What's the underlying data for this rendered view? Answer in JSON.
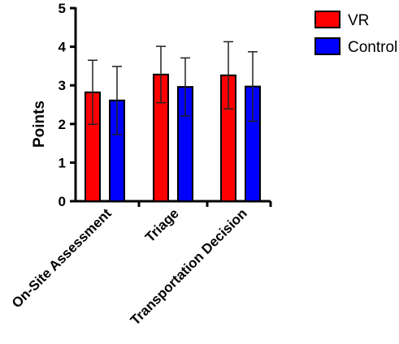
{
  "chart_data": {
    "type": "bar",
    "title": "",
    "xlabel": "",
    "ylabel": "Points",
    "ylim": [
      0,
      5
    ],
    "yticks": [
      0,
      1,
      2,
      3,
      4,
      5
    ],
    "grid": false,
    "legend_position": "top-right",
    "error_bars": true,
    "categories": [
      "On-Site Assessment",
      "Triage",
      "Transportation Decision"
    ],
    "series": [
      {
        "name": "VR",
        "color": "#ff0000",
        "values": [
          2.82,
          3.28,
          3.26
        ],
        "errors": [
          0.83,
          0.73,
          0.87
        ]
      },
      {
        "name": "Control",
        "color": "#0000ff",
        "values": [
          2.61,
          2.96,
          2.97
        ],
        "errors": [
          0.88,
          0.75,
          0.9
        ]
      }
    ]
  }
}
